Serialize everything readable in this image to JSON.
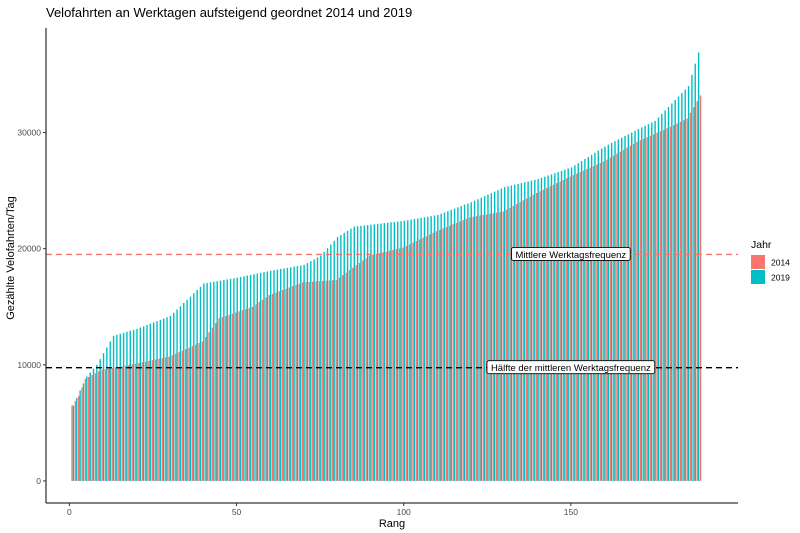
{
  "chart_data": {
    "type": "bar",
    "title": "Velofahrten an Werktagen aufsteigend geordnet 2014 und 2019",
    "xlabel": "Rang",
    "ylabel": "Gezählte Velofahrten/Tag",
    "xlim": [
      -7,
      200
    ],
    "ylim": [
      -1900,
      39000
    ],
    "x_ticks": [
      0,
      50,
      100,
      150
    ],
    "y_ticks": [
      0,
      10000,
      20000,
      30000
    ],
    "x_tick_labels": [
      "0",
      "50",
      "100",
      "150"
    ],
    "y_tick_labels": [
      "0",
      "10000",
      "20000",
      "30000"
    ],
    "grid": false,
    "legend": {
      "title": "Jahr",
      "position": "right",
      "entries": [
        {
          "label": "2014",
          "color": "#F8766D"
        },
        {
          "label": "2019",
          "color": "#00BFC4"
        }
      ]
    },
    "series": [
      {
        "name": "2014",
        "color": "#F8766D",
        "anchors": [
          [
            1,
            6500
          ],
          [
            3,
            7300
          ],
          [
            5,
            8800
          ],
          [
            10,
            9600
          ],
          [
            15,
            9800
          ],
          [
            20,
            10100
          ],
          [
            30,
            10700
          ],
          [
            40,
            12000
          ],
          [
            45,
            14000
          ],
          [
            55,
            15000
          ],
          [
            60,
            16000
          ],
          [
            70,
            17100
          ],
          [
            80,
            17300
          ],
          [
            90,
            19400
          ],
          [
            100,
            20100
          ],
          [
            110,
            21500
          ],
          [
            120,
            22700
          ],
          [
            130,
            23200
          ],
          [
            140,
            24800
          ],
          [
            150,
            26200
          ],
          [
            160,
            27500
          ],
          [
            170,
            29200
          ],
          [
            180,
            30500
          ],
          [
            185,
            31200
          ],
          [
            189,
            33200
          ]
        ],
        "n": 189
      },
      {
        "name": "2019",
        "color": "#00BFC4",
        "anchors": [
          [
            1,
            6500
          ],
          [
            3,
            7800
          ],
          [
            5,
            9000
          ],
          [
            8,
            10000
          ],
          [
            13,
            12500
          ],
          [
            20,
            13100
          ],
          [
            30,
            14200
          ],
          [
            40,
            17000
          ],
          [
            50,
            17500
          ],
          [
            60,
            18100
          ],
          [
            70,
            18600
          ],
          [
            75,
            19400
          ],
          [
            80,
            21000
          ],
          [
            85,
            21900
          ],
          [
            100,
            22400
          ],
          [
            110,
            22900
          ],
          [
            120,
            24000
          ],
          [
            130,
            25300
          ],
          [
            140,
            26000
          ],
          [
            150,
            27000
          ],
          [
            160,
            28800
          ],
          [
            170,
            30300
          ],
          [
            175,
            31000
          ],
          [
            185,
            34000
          ],
          [
            188,
            36900
          ]
        ],
        "n": 188
      }
    ],
    "annotations": [
      {
        "label": "Mittlere Werktagsfrequenz",
        "y": 19500,
        "x": 150,
        "line_color": "#F8766D"
      },
      {
        "label": "Hälfte der mittleren Werktagsfrequenz",
        "y": 9750,
        "x": 150,
        "line_color": "#000000"
      }
    ]
  }
}
